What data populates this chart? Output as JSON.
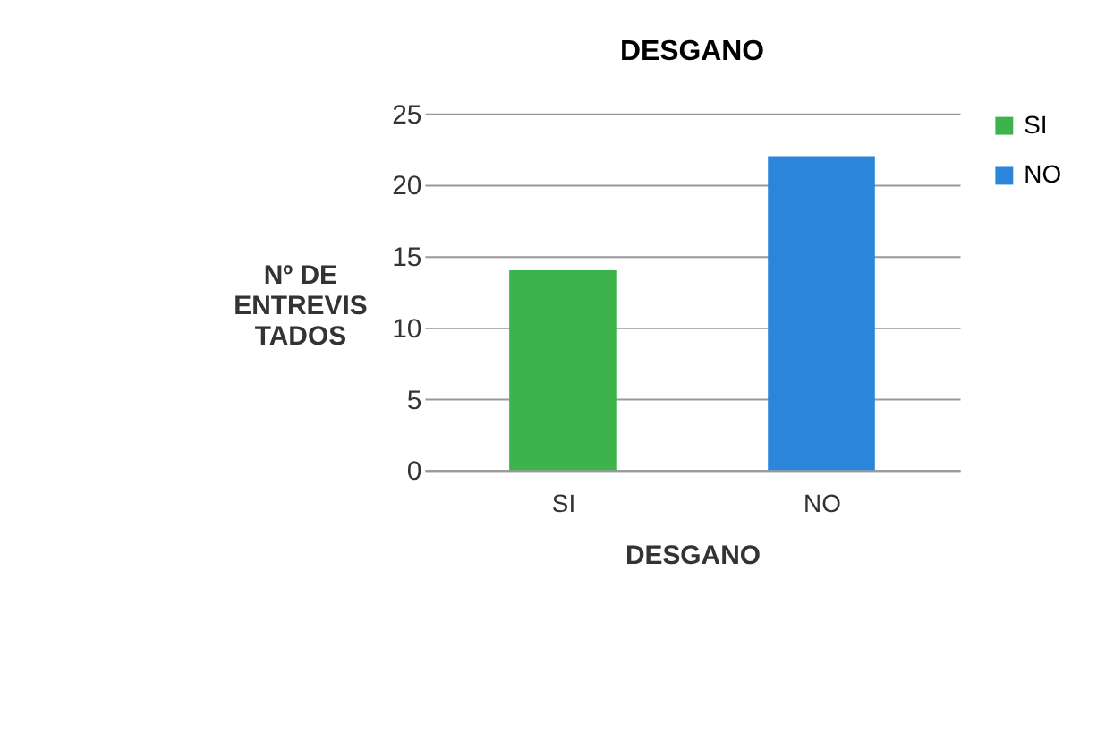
{
  "chart_data": {
    "type": "bar",
    "title": "DESGANO",
    "xlabel": "DESGANO",
    "ylabel": "Nº DE\nENTREVIS\nTADOS",
    "categories": [
      "SI",
      "NO"
    ],
    "series": [
      {
        "name": "SI",
        "color": "#3cb44b",
        "values": [
          14,
          null
        ]
      },
      {
        "name": "NO",
        "color": "#2b86d9",
        "values": [
          null,
          22
        ]
      }
    ],
    "ylim": [
      0,
      25
    ],
    "yticks": [
      0,
      5,
      10,
      15,
      20,
      25
    ],
    "grid": "y",
    "legend": "right"
  }
}
